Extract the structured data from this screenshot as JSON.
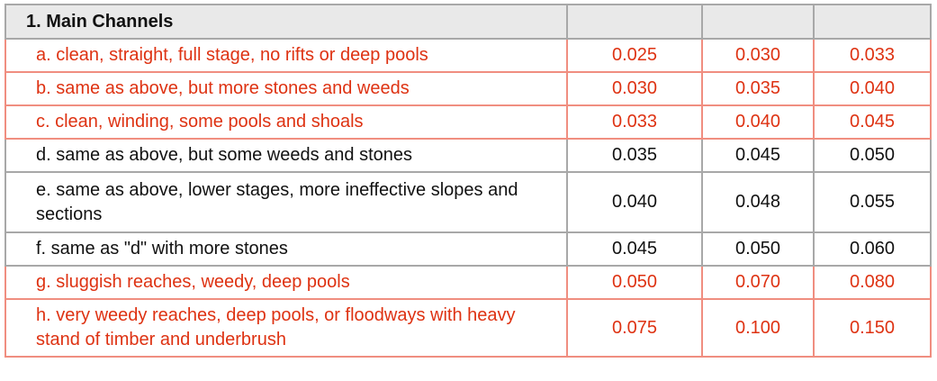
{
  "section_title": "1. Main Channels",
  "header_cells": [
    "",
    "",
    ""
  ],
  "rows": [
    {
      "desc": "a. clean, straight, full stage, no rifts or deep pools",
      "v1": "0.025",
      "v2": "0.030",
      "v3": "0.033",
      "color": "red",
      "lines": 1
    },
    {
      "desc": "b. same as above, but more stones and weeds",
      "v1": "0.030",
      "v2": "0.035",
      "v3": "0.040",
      "color": "red",
      "lines": 1
    },
    {
      "desc": "c. clean, winding, some pools and shoals",
      "v1": "0.033",
      "v2": "0.040",
      "v3": "0.045",
      "color": "red",
      "lines": 1
    },
    {
      "desc": "d. same as above, but some weeds and stones",
      "v1": "0.035",
      "v2": "0.045",
      "v3": "0.050",
      "color": "black",
      "lines": 1
    },
    {
      "desc": "e. same as above, lower stages, more ineffective slopes and sections",
      "v1": "0.040",
      "v2": "0.048",
      "v3": "0.055",
      "color": "black",
      "lines": 2
    },
    {
      "desc": "f. same as \"d\" with more stones",
      "v1": "0.045",
      "v2": "0.050",
      "v3": "0.060",
      "color": "black",
      "lines": 1
    },
    {
      "desc": "g. sluggish reaches, weedy, deep pools",
      "v1": "0.050",
      "v2": "0.070",
      "v3": "0.080",
      "color": "red",
      "lines": 1
    },
    {
      "desc": "h. very weedy reaches, deep pools, or floodways with heavy stand of timber and underbrush",
      "v1": "0.075",
      "v2": "0.100",
      "v3": "0.150",
      "color": "red",
      "lines": 2
    }
  ],
  "colors": {
    "red_text": "#de3212",
    "red_border": "#f08e80",
    "gray_border": "#a8a8a8",
    "header_bg": "#e9e9e9"
  }
}
